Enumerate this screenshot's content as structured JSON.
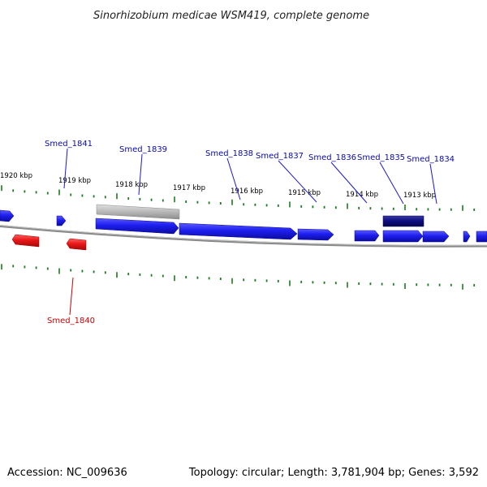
{
  "title": "Sinorhizobium medicae WSM419, complete genome",
  "accession": "Accession: NC_009636",
  "summary": "Topology: circular; Length: 3,781,904 bp; Genes: 3,592",
  "colors": {
    "forward": "#1e1ef0",
    "reverse": "#e81818",
    "highlight": "#0c0c80",
    "gray_feature": "#b8b8b8",
    "backbone": "#8a8a8a",
    "ticks": "#1e7a1e",
    "forward_label": "#0a0aa8",
    "reverse_label": "#cc0000"
  },
  "ticks": [
    {
      "kbp": 1920,
      "label": "1920 kbp"
    },
    {
      "kbp": 1919,
      "label": "1919 kbp"
    },
    {
      "kbp": 1918,
      "label": "1918 kbp"
    },
    {
      "kbp": 1917,
      "label": "1917 kbp"
    },
    {
      "kbp": 1916,
      "label": "1916 kbp"
    },
    {
      "kbp": 1915,
      "label": "1915 kbp"
    },
    {
      "kbp": 1914,
      "label": "1914 kbp"
    },
    {
      "kbp": 1913,
      "label": "1913 kbp"
    }
  ],
  "labeled_genes": [
    {
      "name": "Smed_1841",
      "strand": "+"
    },
    {
      "name": "Smed_1839",
      "strand": "+"
    },
    {
      "name": "Smed_1838",
      "strand": "+"
    },
    {
      "name": "Smed_1837",
      "strand": "+"
    },
    {
      "name": "Smed_1836",
      "strand": "+"
    },
    {
      "name": "Smed_1835",
      "strand": "+"
    },
    {
      "name": "Smed_1834",
      "strand": "+"
    },
    {
      "name": "Smed_1840",
      "strand": "-"
    }
  ]
}
